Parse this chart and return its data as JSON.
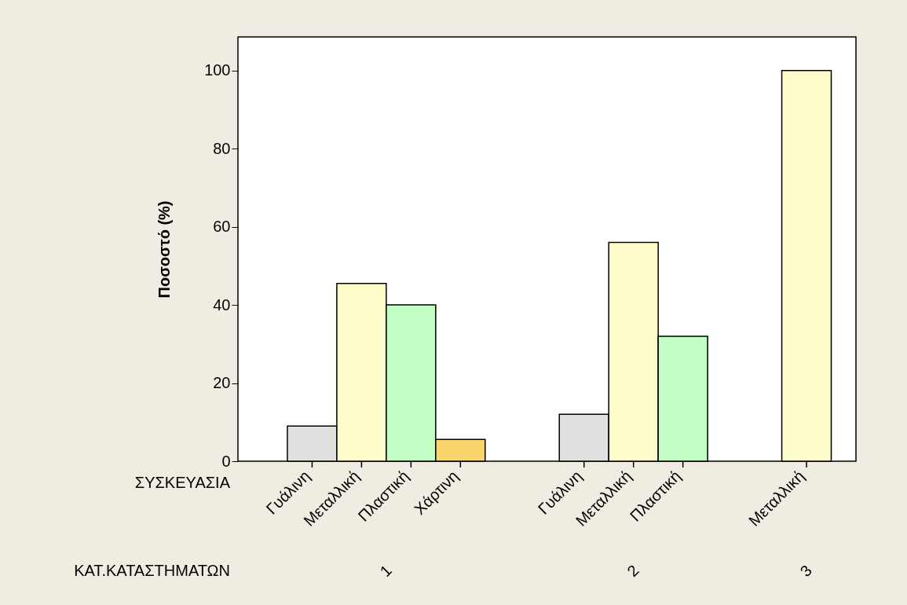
{
  "chart_data": {
    "type": "bar",
    "ylabel": "Ποσοστό (%)",
    "xlabel": "ΚΑΤ.ΚΑΤΑΣΤΗΜΑΤΩΝ",
    "legend_title": "ΣΥΣΚΕΥΑΣΙΑ",
    "categories": [
      "1",
      "2",
      "3"
    ],
    "series": [
      {
        "name": "Γυάλινη",
        "color": "#e0e0e0",
        "values": [
          9,
          12,
          null
        ]
      },
      {
        "name": "Μεταλλική",
        "color": "#fffccc",
        "values": [
          45.5,
          56,
          100
        ]
      },
      {
        "name": "Πλαστική",
        "color": "#c3fdc3",
        "values": [
          40,
          32,
          null
        ]
      },
      {
        "name": "Χάρτινη",
        "color": "#f9d46a",
        "values": [
          5.6,
          null,
          null
        ]
      }
    ],
    "ylim": [
      0,
      108.6
    ],
    "yticks": [
      0,
      20,
      40,
      60,
      80,
      100
    ],
    "grid": false,
    "legend": "bottom"
  }
}
